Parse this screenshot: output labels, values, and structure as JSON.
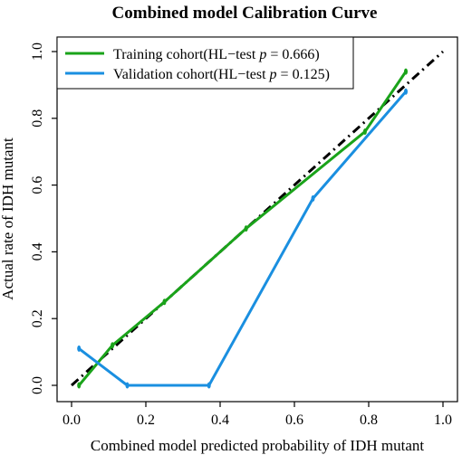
{
  "chart_data": {
    "type": "line",
    "title": "Combined model Calibration Curve",
    "xlabel": "Combined model predicted probability of IDH mutant",
    "ylabel": "Actual rate of IDH mutant",
    "xlim": [
      0,
      1
    ],
    "ylim": [
      0,
      1
    ],
    "xticks": [
      "0.0",
      "0.2",
      "0.4",
      "0.6",
      "0.8",
      "1.0"
    ],
    "yticks": [
      "0.0",
      "0.2",
      "0.4",
      "0.6",
      "0.8",
      "1.0"
    ],
    "grid": false,
    "legend_position": "top-left",
    "reference_line": {
      "style": "dash-dot",
      "color": "#000000",
      "x": [
        0,
        1
      ],
      "y": [
        0,
        1
      ]
    },
    "series": [
      {
        "name_prefix": "Training cohort(HL−test ",
        "name_p": "p",
        "name_suffix": " = 0.666)",
        "color": "#1aa31a",
        "x": [
          0.02,
          0.11,
          0.25,
          0.47,
          0.79,
          0.9
        ],
        "y": [
          0.0,
          0.12,
          0.25,
          0.47,
          0.76,
          0.94
        ]
      },
      {
        "name_prefix": "Validation cohort(HL−test ",
        "name_p": "p",
        "name_suffix": " = 0.125)",
        "color": "#1a8fe0",
        "x": [
          0.02,
          0.15,
          0.37,
          0.65,
          0.9
        ],
        "y": [
          0.11,
          0.0,
          0.0,
          0.56,
          0.88
        ]
      }
    ]
  }
}
